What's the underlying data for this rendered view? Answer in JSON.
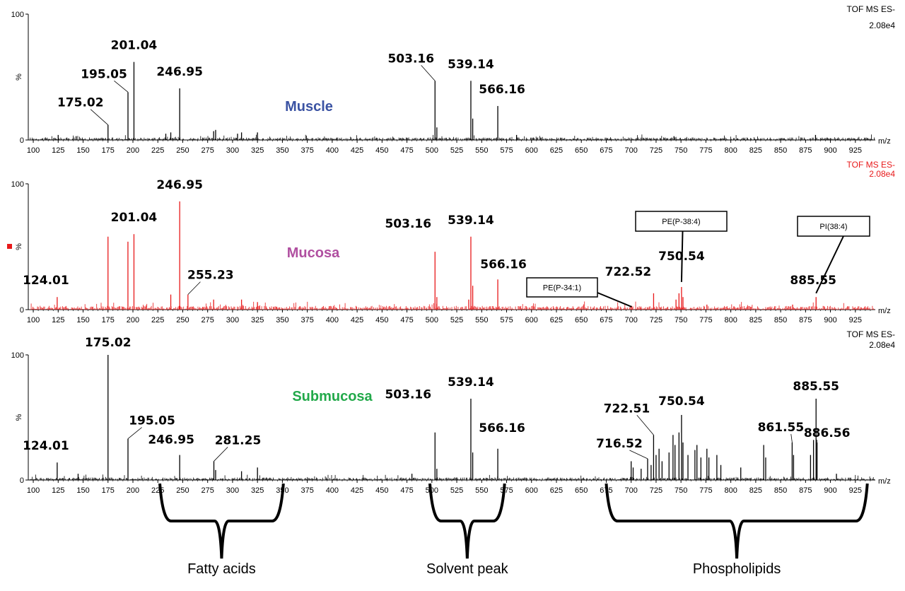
{
  "chart_data": [
    {
      "type": "line",
      "tissue_label": "Muscle",
      "tissue_color": "#3b53a3",
      "line_color": "#000000",
      "header_color": "#000000",
      "header": [
        "TOF MS ES-",
        "2.08e4"
      ],
      "xlabel": "m/z",
      "ylabel": "%",
      "xlim": [
        95,
        945
      ],
      "ylim": [
        0,
        100
      ],
      "y_ticks": [
        0,
        100
      ],
      "x_ticks": [
        100,
        125,
        150,
        175,
        200,
        225,
        250,
        275,
        300,
        325,
        350,
        375,
        400,
        425,
        450,
        475,
        500,
        525,
        550,
        575,
        600,
        625,
        650,
        675,
        700,
        725,
        750,
        775,
        800,
        825,
        850,
        875,
        900,
        925
      ],
      "noise_level": 2,
      "peaks": [
        {
          "x": 125,
          "y": 4
        },
        {
          "x": 143,
          "y": 3
        },
        {
          "x": 175.02,
          "y": 12,
          "label": "175.02"
        },
        {
          "x": 195.05,
          "y": 38,
          "label": "195.05"
        },
        {
          "x": 201.04,
          "y": 62,
          "label": "201.04"
        },
        {
          "x": 233,
          "y": 5
        },
        {
          "x": 238,
          "y": 6
        },
        {
          "x": 246.95,
          "y": 41,
          "label": "246.95"
        },
        {
          "x": 281,
          "y": 7
        },
        {
          "x": 283,
          "y": 8
        },
        {
          "x": 305,
          "y": 5
        },
        {
          "x": 309,
          "y": 6
        },
        {
          "x": 325,
          "y": 6
        },
        {
          "x": 503.16,
          "y": 47,
          "label": "503.16"
        },
        {
          "x": 505,
          "y": 10
        },
        {
          "x": 539.14,
          "y": 47,
          "label": "539.14"
        },
        {
          "x": 541,
          "y": 17
        },
        {
          "x": 566.16,
          "y": 27,
          "label": "566.16"
        },
        {
          "x": 585,
          "y": 4
        },
        {
          "x": 743,
          "y": 3
        },
        {
          "x": 885,
          "y": 4
        }
      ]
    },
    {
      "type": "line",
      "tissue_label": "Mucosa",
      "tissue_color": "#b04fa0",
      "line_color": "#e8191a",
      "header_color": "#e8191a",
      "header": [
        "TOF MS ES-",
        "2.08e4"
      ],
      "xlabel": "m/z",
      "ylabel": "%",
      "xlim": [
        95,
        945
      ],
      "ylim": [
        0,
        100
      ],
      "y_ticks": [
        0,
        100
      ],
      "x_ticks": [
        100,
        125,
        150,
        175,
        200,
        225,
        250,
        275,
        300,
        325,
        350,
        375,
        400,
        425,
        450,
        475,
        500,
        525,
        550,
        575,
        600,
        625,
        650,
        675,
        700,
        725,
        750,
        775,
        800,
        825,
        850,
        875,
        900,
        925
      ],
      "noise_level": 3,
      "peaks": [
        {
          "x": 124.01,
          "y": 10,
          "label": "124.01"
        },
        {
          "x": 175,
          "y": 58
        },
        {
          "x": 195,
          "y": 54
        },
        {
          "x": 201.04,
          "y": 60,
          "label": "201.04"
        },
        {
          "x": 238,
          "y": 12
        },
        {
          "x": 246.95,
          "y": 86,
          "label": "246.95"
        },
        {
          "x": 255.23,
          "y": 12,
          "label": "255.23"
        },
        {
          "x": 281,
          "y": 8
        },
        {
          "x": 309,
          "y": 8
        },
        {
          "x": 325,
          "y": 6
        },
        {
          "x": 503.16,
          "y": 46,
          "label": "503.16"
        },
        {
          "x": 505,
          "y": 10
        },
        {
          "x": 537,
          "y": 8
        },
        {
          "x": 539.14,
          "y": 58,
          "label": "539.14"
        },
        {
          "x": 541,
          "y": 19
        },
        {
          "x": 566.16,
          "y": 24,
          "label": "566.16"
        },
        {
          "x": 700.5,
          "y": 3
        },
        {
          "x": 722.52,
          "y": 13,
          "label": "722.52"
        },
        {
          "x": 745,
          "y": 8
        },
        {
          "x": 748,
          "y": 13
        },
        {
          "x": 750.54,
          "y": 18,
          "label": "750.54"
        },
        {
          "x": 752,
          "y": 10
        },
        {
          "x": 776,
          "y": 4
        },
        {
          "x": 885.55,
          "y": 10,
          "label": "885.55"
        },
        {
          "x": 862,
          "y": 4
        }
      ],
      "annotations": [
        {
          "text": "PE(P-34:1)",
          "target_x": 700.5
        },
        {
          "text": "PE(P-38:4)",
          "target_x": 750.54
        },
        {
          "text": "PI(38:4)",
          "target_x": 885.55
        }
      ]
    },
    {
      "type": "line",
      "tissue_label": "Submucosa",
      "tissue_color": "#22a94a",
      "line_color": "#000000",
      "header_color": "#000000",
      "header": [
        "TOF MS ES-",
        "2.08e4"
      ],
      "xlabel": "m/z",
      "ylabel": "%",
      "xlim": [
        95,
        945
      ],
      "ylim": [
        0,
        100
      ],
      "y_ticks": [
        0,
        100
      ],
      "x_ticks": [
        100,
        125,
        150,
        175,
        200,
        225,
        250,
        275,
        300,
        325,
        350,
        375,
        400,
        425,
        450,
        475,
        500,
        525,
        550,
        575,
        600,
        625,
        650,
        675,
        700,
        725,
        750,
        775,
        800,
        825,
        850,
        875,
        900,
        925
      ],
      "noise_level": 2,
      "peaks": [
        {
          "x": 124.01,
          "y": 14,
          "label": "124.01"
        },
        {
          "x": 145,
          "y": 5
        },
        {
          "x": 175.02,
          "y": 100,
          "label": "175.02"
        },
        {
          "x": 195.05,
          "y": 33,
          "label": "195.05"
        },
        {
          "x": 246.95,
          "y": 20,
          "label": "246.95"
        },
        {
          "x": 281.25,
          "y": 15,
          "label": "281.25"
        },
        {
          "x": 283,
          "y": 8
        },
        {
          "x": 309,
          "y": 7
        },
        {
          "x": 325,
          "y": 10
        },
        {
          "x": 480,
          "y": 5
        },
        {
          "x": 503.16,
          "y": 38,
          "label": "503.16"
        },
        {
          "x": 505,
          "y": 9
        },
        {
          "x": 539.14,
          "y": 65,
          "label": "539.14"
        },
        {
          "x": 541,
          "y": 22
        },
        {
          "x": 566.16,
          "y": 25,
          "label": "566.16"
        },
        {
          "x": 700,
          "y": 15
        },
        {
          "x": 702,
          "y": 10
        },
        {
          "x": 710,
          "y": 9
        },
        {
          "x": 716.52,
          "y": 17,
          "label": "716.52"
        },
        {
          "x": 720,
          "y": 12
        },
        {
          "x": 722.51,
          "y": 36,
          "label": "722.51"
        },
        {
          "x": 725,
          "y": 20
        },
        {
          "x": 728,
          "y": 25
        },
        {
          "x": 731,
          "y": 15
        },
        {
          "x": 738,
          "y": 22
        },
        {
          "x": 742,
          "y": 36
        },
        {
          "x": 744,
          "y": 28
        },
        {
          "x": 748,
          "y": 38
        },
        {
          "x": 750.54,
          "y": 52,
          "label": "750.54"
        },
        {
          "x": 752,
          "y": 30
        },
        {
          "x": 757,
          "y": 20
        },
        {
          "x": 764,
          "y": 24
        },
        {
          "x": 766,
          "y": 28
        },
        {
          "x": 770,
          "y": 18
        },
        {
          "x": 776,
          "y": 25
        },
        {
          "x": 778,
          "y": 18
        },
        {
          "x": 786,
          "y": 20
        },
        {
          "x": 790,
          "y": 12
        },
        {
          "x": 810,
          "y": 10
        },
        {
          "x": 833,
          "y": 28
        },
        {
          "x": 835,
          "y": 18
        },
        {
          "x": 861.55,
          "y": 30,
          "label": "861.55"
        },
        {
          "x": 863,
          "y": 20
        },
        {
          "x": 880,
          "y": 20
        },
        {
          "x": 883,
          "y": 32
        },
        {
          "x": 885.55,
          "y": 65,
          "label": "885.55"
        },
        {
          "x": 886.56,
          "y": 30,
          "label": "886.56"
        },
        {
          "x": 906,
          "y": 5
        }
      ]
    }
  ],
  "groups": [
    {
      "label": "Fatty acids",
      "from": 227,
      "to": 351
    },
    {
      "label": "Solvent peak",
      "from": 498,
      "to": 573
    },
    {
      "label": "Phospholipids",
      "from": 675,
      "to": 937
    }
  ]
}
